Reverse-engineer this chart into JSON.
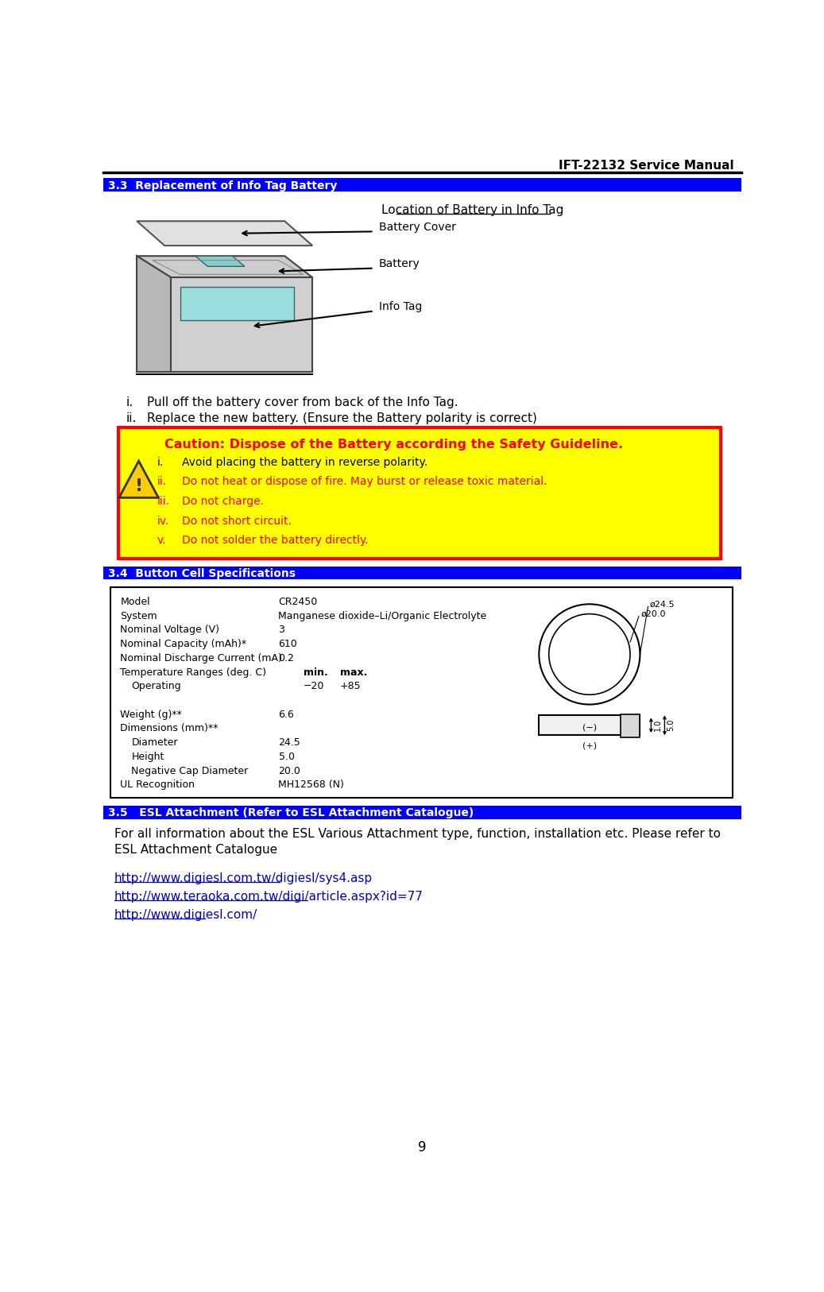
{
  "title_header": "IFT-22132 Service Manual",
  "page_number": "9",
  "section_33_title": "3.3  Replacement of Info Tag Battery",
  "diagram_title": "Location of Battery in Info Tag",
  "label_battery_cover": "Battery Cover",
  "label_battery": "Battery",
  "label_info_tag": "Info Tag",
  "step_i": "Pull off the battery cover from back of the Info Tag.",
  "step_ii": "Replace the new battery. (Ensure the Battery polarity is correct)",
  "caution_title": "Caution: Dispose of the Battery according the Safety Guideline.",
  "caution_i": "Avoid placing the battery in reverse polarity.",
  "caution_ii": "Do not heat or dispose of fire. May burst or release toxic material.",
  "caution_iii": "Do not charge.",
  "caution_iv": "Do not short circuit.",
  "caution_v": "Do not solder the battery directly.",
  "section_34_title": "3.4  Button Cell Specifications",
  "spec_model_label": "Model",
  "spec_model_value": "CR2450",
  "spec_system_label": "System",
  "spec_system_value": "Manganese dioxide–Li/Organic Electrolyte",
  "spec_voltage_label": "Nominal Voltage (V)",
  "spec_voltage_value": "3",
  "spec_capacity_label": "Nominal Capacity (mAh)*",
  "spec_capacity_value": "610",
  "spec_discharge_label": "Nominal Discharge Current (mA)",
  "spec_discharge_value": "0.2",
  "spec_temp_label": "Temperature Ranges (deg. C)",
  "spec_temp_min_label": "min.",
  "spec_temp_max_label": "max.",
  "spec_operating_label": "Operating",
  "spec_operating_min": "−20",
  "spec_operating_max": "+85",
  "spec_weight_label": "Weight (g)**",
  "spec_weight_value": "6.6",
  "spec_dim_label": "Dimensions (mm)**",
  "spec_diameter_label": "Diameter",
  "spec_diameter_value": "24.5",
  "spec_height_label": "Height",
  "spec_height_value": "5.0",
  "spec_negcap_label": "Negative Cap Diameter",
  "spec_negcap_value": "20.0",
  "spec_ul_label": "UL Recognition",
  "spec_ul_value": "MH12568 (N)",
  "section_35_title": "3.5   ESL Attachment (Refer to ESL Attachment Catalogue)",
  "esl_line1": "For all information about the ESL Various Attachment type, function, installation etc. Please refer to",
  "esl_line2": "ESL Attachment Catalogue",
  "url1": "http://www.digiesl.com.tw/digiesl/sys4.asp",
  "url2": "http://www.teraoka.com.tw/digi/article.aspx?id=77",
  "url3": "http://www.digiesl.com/",
  "bg_color": "#ffffff",
  "section_header_bg": "#0000ff",
  "section_header_fg": "#ffffff",
  "caution_bg": "#ffff00",
  "caution_border": "#ff0000",
  "caution_title_color": "#ff0000",
  "caution_body_color": "#ff0000",
  "caution_i_color": "#000000",
  "spec_box_border": "#000000"
}
